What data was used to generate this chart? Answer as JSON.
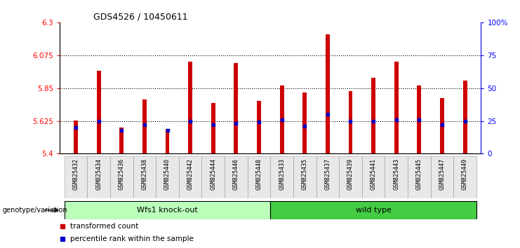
{
  "title": "GDS4526 / 10450611",
  "samples": [
    "GSM825432",
    "GSM825434",
    "GSM825436",
    "GSM825438",
    "GSM825440",
    "GSM825442",
    "GSM825444",
    "GSM825446",
    "GSM825448",
    "GSM825433",
    "GSM825435",
    "GSM825437",
    "GSM825439",
    "GSM825441",
    "GSM825443",
    "GSM825445",
    "GSM825447",
    "GSM825449"
  ],
  "red_values": [
    5.63,
    5.97,
    5.58,
    5.77,
    5.57,
    6.03,
    5.75,
    6.02,
    5.76,
    5.87,
    5.82,
    6.22,
    5.83,
    5.92,
    6.03,
    5.87,
    5.78,
    5.9
  ],
  "blue_values": [
    20,
    25,
    18,
    22,
    18,
    25,
    22,
    23,
    24,
    26,
    21,
    30,
    25,
    25,
    26,
    26,
    22,
    25
  ],
  "ylim_left": [
    5.4,
    6.3
  ],
  "ylim_right": [
    0,
    100
  ],
  "yticks_left": [
    5.4,
    5.625,
    5.85,
    6.075,
    6.3
  ],
  "yticks_right": [
    0,
    25,
    50,
    75,
    100
  ],
  "ytick_labels_left": [
    "5.4",
    "5.625",
    "5.85",
    "6.075",
    "6.3"
  ],
  "ytick_labels_right": [
    "0",
    "25",
    "50",
    "75",
    "100%"
  ],
  "grid_lines": [
    5.625,
    5.85,
    6.075
  ],
  "group1_label": "Wfs1 knock-out",
  "group2_label": "wild type",
  "group1_count": 9,
  "group2_count": 9,
  "legend_red": "transformed count",
  "legend_blue": "percentile rank within the sample",
  "genotype_label": "genotype/variation",
  "bar_color": "#cc0000",
  "dot_color": "#0000cc",
  "group1_color": "#bbffbb",
  "group2_color": "#44cc44",
  "base_value": 5.4,
  "bar_width": 0.18
}
